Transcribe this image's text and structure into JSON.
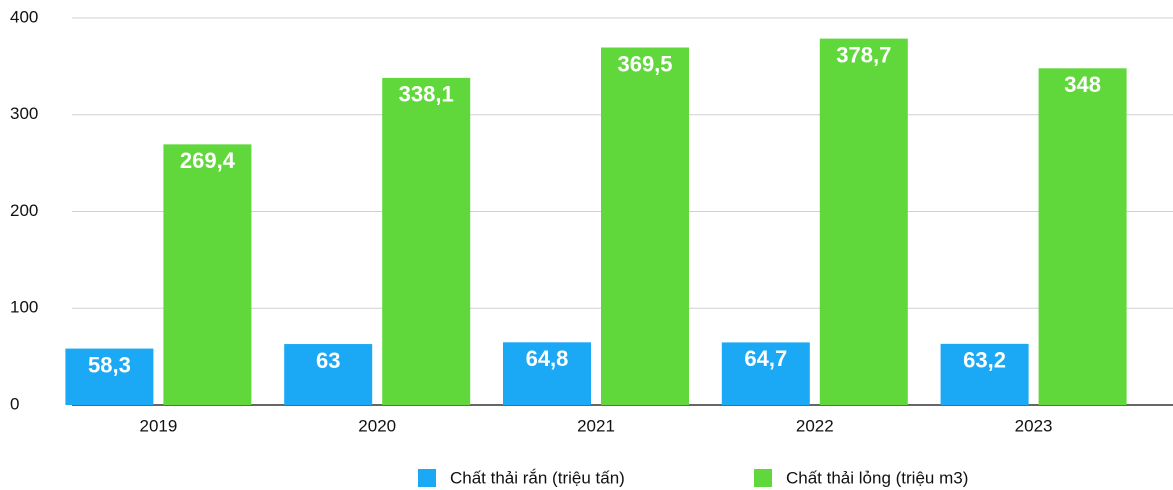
{
  "chart_data": {
    "type": "bar",
    "categories": [
      "2019",
      "2020",
      "2021",
      "2022",
      "2023"
    ],
    "series": [
      {
        "name": "Chất thải rắn (triệu tấn)",
        "color": "#1ba8f4",
        "values": [
          58.3,
          63,
          64.8,
          64.7,
          63.2
        ],
        "value_labels": [
          "58,3",
          "63",
          "64,8",
          "64,7",
          "63,2"
        ]
      },
      {
        "name": "Chất thải lỏng (triệu m3)",
        "color": "#60d83c",
        "values": [
          269.4,
          338.1,
          369.5,
          378.7,
          348
        ],
        "value_labels": [
          "269,4",
          "338,1",
          "369,5",
          "378,7",
          "348"
        ]
      }
    ],
    "ylim": [
      0,
      400
    ],
    "yticks": [
      0,
      100,
      200,
      300,
      400
    ],
    "grid": true,
    "legend": "bottom"
  }
}
